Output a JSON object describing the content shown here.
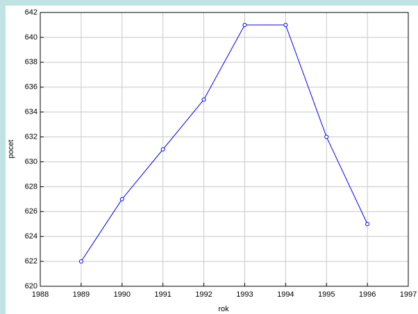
{
  "chart_data": {
    "type": "line",
    "x": [
      1989,
      1990,
      1991,
      1992,
      1993,
      1994,
      1995,
      1996
    ],
    "values": [
      622,
      627,
      631,
      635,
      641,
      641,
      632,
      625
    ],
    "color": "#0000ff",
    "xlabel": "rok",
    "ylabel": "pocet",
    "xlim": [
      1988,
      1997
    ],
    "xticks": [
      1988,
      1989,
      1990,
      1991,
      1992,
      1993,
      1994,
      1995,
      1996,
      1997
    ],
    "ylim": [
      620,
      642
    ],
    "yticks": [
      620,
      622,
      624,
      626,
      628,
      630,
      632,
      634,
      636,
      638,
      640,
      642
    ],
    "grid": true
  }
}
